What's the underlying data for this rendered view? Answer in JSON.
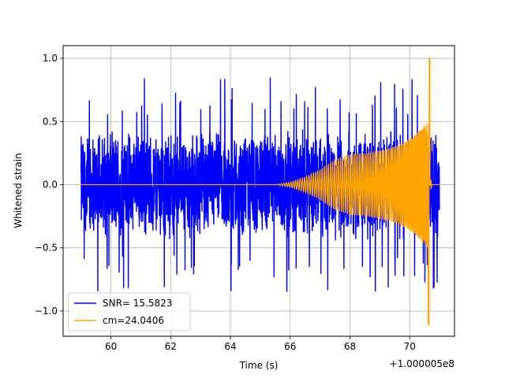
{
  "chart_data": {
    "type": "line",
    "xlabel": "Time (s)",
    "ylabel": "Whitened strain",
    "x_offset_label": "+1.000005e8",
    "xlim": [
      58.4,
      71.5
    ],
    "ylim": [
      -1.2,
      1.1
    ],
    "x_ticks": [
      60,
      62,
      64,
      66,
      68,
      70
    ],
    "x_tick_labels": [
      "60",
      "62",
      "64",
      "66",
      "68",
      "70"
    ],
    "y_ticks": [
      -1.0,
      -0.5,
      0.0,
      0.5,
      1.0
    ],
    "y_tick_labels": [
      "−1.0",
      "−0.5",
      "0.0",
      "0.5",
      "1.0"
    ],
    "grid": true,
    "legend_position": "lower-left",
    "series": [
      {
        "name": "SNR= 15.5823",
        "color": "#0000ff",
        "kind": "whitened-noise",
        "x_range": [
          59.0,
          71.0
        ],
        "typical_amplitude": 0.45,
        "max": 1.0,
        "min": -0.98
      },
      {
        "name": "cm=24.0406",
        "color": "#ffa500",
        "kind": "chirp-template",
        "x_range": [
          59.0,
          71.0
        ],
        "onset": 65.5,
        "envelope": [
          [
            65.5,
            0.0
          ],
          [
            66.0,
            0.02
          ],
          [
            66.5,
            0.06
          ],
          [
            67.0,
            0.12
          ],
          [
            67.5,
            0.2
          ],
          [
            68.0,
            0.24
          ],
          [
            68.5,
            0.25
          ],
          [
            69.0,
            0.27
          ],
          [
            69.5,
            0.3
          ],
          [
            70.0,
            0.36
          ],
          [
            70.3,
            0.42
          ],
          [
            70.6,
            0.5
          ]
        ],
        "merger_time": 70.68,
        "peak": 1.0,
        "trough": -1.11
      }
    ]
  }
}
